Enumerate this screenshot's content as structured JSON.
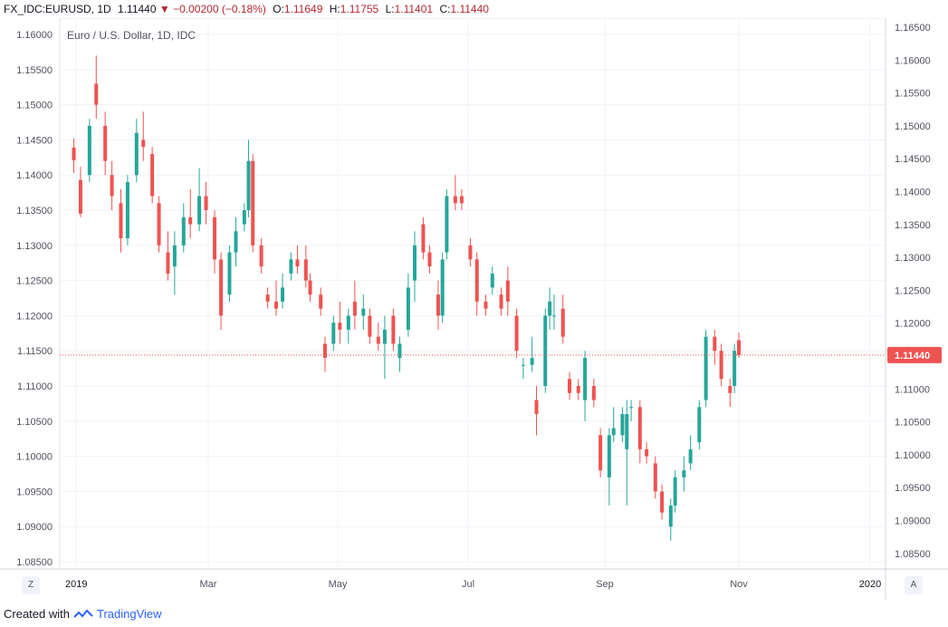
{
  "header": {
    "symbol": "FX_IDC:EURUSD",
    "interval": "1D",
    "last": "1.11440",
    "change": "−0.00200 (−0.18%)",
    "open_label": "O:",
    "open": "1.11649",
    "high_label": "H:",
    "high": "1.11755",
    "low_label": "L:",
    "low": "1.11401",
    "close_label": "C:",
    "close": "1.11440"
  },
  "chart_title": "Euro / U.S. Dollar, 1D, IDC",
  "buttons": {
    "left": "Z",
    "right": "A"
  },
  "footer": {
    "created_with": "Created with",
    "brand": "TradingView"
  },
  "chart_data": {
    "type": "candlestick",
    "title": "Euro / U.S. Dollar, 1D, IDC",
    "x_axis": {
      "labels": [
        "2019",
        "Mar",
        "May",
        "Jul",
        "Sep",
        "Nov",
        "2020"
      ],
      "range": [
        "2018-12-28",
        "2020-01-31"
      ]
    },
    "y_axis": {
      "left_ticks": [
        "1.16000",
        "1.15500",
        "1.15000",
        "1.14500",
        "1.14000",
        "1.13500",
        "1.13000",
        "1.12500",
        "1.12000",
        "1.11500",
        "1.11000",
        "1.10500",
        "1.10000",
        "1.09500",
        "1.09000",
        "1.08500"
      ],
      "right_ticks": [
        "1.16500",
        "1.16000",
        "1.15500",
        "1.15000",
        "1.14500",
        "1.14000",
        "1.13500",
        "1.13000",
        "1.12500",
        "1.12000",
        "1.11500",
        "1.11000",
        "1.10500",
        "1.10000",
        "1.09500",
        "1.09000",
        "1.08500"
      ]
    },
    "last_price_label": "1.11440",
    "last_price": 1.1144,
    "grid": true,
    "colors": {
      "up": "#26a69a",
      "down": "#ef5350",
      "price_line": "#ef5350"
    },
    "series": [
      {
        "date": "2018-12-31",
        "o": 1.1439,
        "h": 1.1452,
        "l": 1.1403,
        "c": 1.1421
      },
      {
        "date": "2019-01-03",
        "o": 1.1393,
        "h": 1.1412,
        "l": 1.134,
        "c": 1.1345
      },
      {
        "date": "2019-01-07",
        "o": 1.14,
        "h": 1.148,
        "l": 1.139,
        "c": 1.147
      },
      {
        "date": "2019-01-10",
        "o": 1.153,
        "h": 1.157,
        "l": 1.148,
        "c": 1.15
      },
      {
        "date": "2019-01-14",
        "o": 1.147,
        "h": 1.149,
        "l": 1.14,
        "c": 1.142
      },
      {
        "date": "2019-01-17",
        "o": 1.14,
        "h": 1.142,
        "l": 1.135,
        "c": 1.137
      },
      {
        "date": "2019-01-21",
        "o": 1.136,
        "h": 1.138,
        "l": 1.129,
        "c": 1.131
      },
      {
        "date": "2019-01-24",
        "o": 1.131,
        "h": 1.14,
        "l": 1.13,
        "c": 1.139
      },
      {
        "date": "2019-01-28",
        "o": 1.14,
        "h": 1.148,
        "l": 1.139,
        "c": 1.146
      },
      {
        "date": "2019-01-31",
        "o": 1.145,
        "h": 1.149,
        "l": 1.142,
        "c": 1.144
      },
      {
        "date": "2019-02-04",
        "o": 1.143,
        "h": 1.144,
        "l": 1.136,
        "c": 1.137
      },
      {
        "date": "2019-02-07",
        "o": 1.136,
        "h": 1.137,
        "l": 1.129,
        "c": 1.13
      },
      {
        "date": "2019-02-11",
        "o": 1.129,
        "h": 1.132,
        "l": 1.125,
        "c": 1.126
      },
      {
        "date": "2019-02-14",
        "o": 1.127,
        "h": 1.132,
        "l": 1.123,
        "c": 1.13
      },
      {
        "date": "2019-02-18",
        "o": 1.13,
        "h": 1.136,
        "l": 1.129,
        "c": 1.134
      },
      {
        "date": "2019-02-21",
        "o": 1.134,
        "h": 1.138,
        "l": 1.131,
        "c": 1.133
      },
      {
        "date": "2019-02-25",
        "o": 1.133,
        "h": 1.141,
        "l": 1.132,
        "c": 1.137
      },
      {
        "date": "2019-02-28",
        "o": 1.137,
        "h": 1.139,
        "l": 1.133,
        "c": 1.135
      },
      {
        "date": "2019-03-04",
        "o": 1.134,
        "h": 1.135,
        "l": 1.126,
        "c": 1.128
      },
      {
        "date": "2019-03-07",
        "o": 1.128,
        "h": 1.129,
        "l": 1.118,
        "c": 1.12
      },
      {
        "date": "2019-03-11",
        "o": 1.123,
        "h": 1.13,
        "l": 1.122,
        "c": 1.129
      },
      {
        "date": "2019-03-14",
        "o": 1.129,
        "h": 1.134,
        "l": 1.127,
        "c": 1.132
      },
      {
        "date": "2019-03-18",
        "o": 1.133,
        "h": 1.136,
        "l": 1.132,
        "c": 1.135
      },
      {
        "date": "2019-03-20",
        "o": 1.135,
        "h": 1.145,
        "l": 1.134,
        "c": 1.142
      },
      {
        "date": "2019-03-22",
        "o": 1.142,
        "h": 1.143,
        "l": 1.129,
        "c": 1.13
      },
      {
        "date": "2019-03-26",
        "o": 1.13,
        "h": 1.131,
        "l": 1.126,
        "c": 1.127
      },
      {
        "date": "2019-03-29",
        "o": 1.123,
        "h": 1.124,
        "l": 1.121,
        "c": 1.122
      },
      {
        "date": "2019-04-02",
        "o": 1.122,
        "h": 1.125,
        "l": 1.12,
        "c": 1.121
      },
      {
        "date": "2019-04-05",
        "o": 1.122,
        "h": 1.126,
        "l": 1.121,
        "c": 1.124
      },
      {
        "date": "2019-04-09",
        "o": 1.126,
        "h": 1.129,
        "l": 1.125,
        "c": 1.128
      },
      {
        "date": "2019-04-12",
        "o": 1.128,
        "h": 1.13,
        "l": 1.126,
        "c": 1.127
      },
      {
        "date": "2019-04-16",
        "o": 1.128,
        "h": 1.13,
        "l": 1.124,
        "c": 1.125
      },
      {
        "date": "2019-04-18",
        "o": 1.125,
        "h": 1.126,
        "l": 1.122,
        "c": 1.123
      },
      {
        "date": "2019-04-23",
        "o": 1.123,
        "h": 1.124,
        "l": 1.12,
        "c": 1.121
      },
      {
        "date": "2019-04-25",
        "o": 1.116,
        "h": 1.117,
        "l": 1.112,
        "c": 1.114
      },
      {
        "date": "2019-04-29",
        "o": 1.116,
        "h": 1.12,
        "l": 1.115,
        "c": 1.119
      },
      {
        "date": "2019-05-02",
        "o": 1.119,
        "h": 1.122,
        "l": 1.116,
        "c": 1.118
      },
      {
        "date": "2019-05-06",
        "o": 1.118,
        "h": 1.121,
        "l": 1.116,
        "c": 1.12
      },
      {
        "date": "2019-05-09",
        "o": 1.122,
        "h": 1.125,
        "l": 1.118,
        "c": 1.12
      },
      {
        "date": "2019-05-13",
        "o": 1.12,
        "h": 1.123,
        "l": 1.118,
        "c": 1.121
      },
      {
        "date": "2019-05-16",
        "o": 1.12,
        "h": 1.121,
        "l": 1.116,
        "c": 1.117
      },
      {
        "date": "2019-05-20",
        "o": 1.117,
        "h": 1.119,
        "l": 1.115,
        "c": 1.116
      },
      {
        "date": "2019-05-23",
        "o": 1.116,
        "h": 1.12,
        "l": 1.111,
        "c": 1.118
      },
      {
        "date": "2019-05-27",
        "o": 1.12,
        "h": 1.121,
        "l": 1.115,
        "c": 1.116
      },
      {
        "date": "2019-05-30",
        "o": 1.114,
        "h": 1.117,
        "l": 1.112,
        "c": 1.116
      },
      {
        "date": "2019-06-03",
        "o": 1.118,
        "h": 1.126,
        "l": 1.117,
        "c": 1.124
      },
      {
        "date": "2019-06-06",
        "o": 1.125,
        "h": 1.132,
        "l": 1.122,
        "c": 1.13
      },
      {
        "date": "2019-06-10",
        "o": 1.133,
        "h": 1.134,
        "l": 1.128,
        "c": 1.129
      },
      {
        "date": "2019-06-13",
        "o": 1.129,
        "h": 1.13,
        "l": 1.126,
        "c": 1.127
      },
      {
        "date": "2019-06-17",
        "o": 1.123,
        "h": 1.125,
        "l": 1.118,
        "c": 1.12
      },
      {
        "date": "2019-06-19",
        "o": 1.12,
        "h": 1.129,
        "l": 1.119,
        "c": 1.128
      },
      {
        "date": "2019-06-21",
        "o": 1.129,
        "h": 1.138,
        "l": 1.128,
        "c": 1.137
      },
      {
        "date": "2019-06-25",
        "o": 1.137,
        "h": 1.14,
        "l": 1.135,
        "c": 1.136
      },
      {
        "date": "2019-06-28",
        "o": 1.137,
        "h": 1.138,
        "l": 1.135,
        "c": 1.136
      },
      {
        "date": "2019-07-02",
        "o": 1.13,
        "h": 1.131,
        "l": 1.127,
        "c": 1.128
      },
      {
        "date": "2019-07-05",
        "o": 1.128,
        "h": 1.129,
        "l": 1.12,
        "c": 1.122
      },
      {
        "date": "2019-07-09",
        "o": 1.122,
        "h": 1.123,
        "l": 1.12,
        "c": 1.121
      },
      {
        "date": "2019-07-12",
        "o": 1.124,
        "h": 1.127,
        "l": 1.123,
        "c": 1.126
      },
      {
        "date": "2019-07-16",
        "o": 1.123,
        "h": 1.124,
        "l": 1.12,
        "c": 1.121
      },
      {
        "date": "2019-07-19",
        "o": 1.125,
        "h": 1.127,
        "l": 1.12,
        "c": 1.122
      },
      {
        "date": "2019-07-23",
        "o": 1.12,
        "h": 1.121,
        "l": 1.114,
        "c": 1.115
      },
      {
        "date": "2019-07-26",
        "o": 1.113,
        "h": 1.114,
        "l": 1.111,
        "c": 1.113
      },
      {
        "date": "2019-07-30",
        "o": 1.113,
        "h": 1.117,
        "l": 1.112,
        "c": 1.114
      },
      {
        "date": "2019-08-01",
        "o": 1.108,
        "h": 1.11,
        "l": 1.103,
        "c": 1.106
      },
      {
        "date": "2019-08-05",
        "o": 1.11,
        "h": 1.121,
        "l": 1.109,
        "c": 1.12
      },
      {
        "date": "2019-08-07",
        "o": 1.12,
        "h": 1.124,
        "l": 1.118,
        "c": 1.122
      },
      {
        "date": "2019-08-09",
        "o": 1.12,
        "h": 1.123,
        "l": 1.118,
        "c": 1.12
      },
      {
        "date": "2019-08-13",
        "o": 1.121,
        "h": 1.123,
        "l": 1.116,
        "c": 1.117
      },
      {
        "date": "2019-08-16",
        "o": 1.111,
        "h": 1.112,
        "l": 1.108,
        "c": 1.109
      },
      {
        "date": "2019-08-20",
        "o": 1.11,
        "h": 1.111,
        "l": 1.108,
        "c": 1.109
      },
      {
        "date": "2019-08-23",
        "o": 1.108,
        "h": 1.115,
        "l": 1.105,
        "c": 1.114
      },
      {
        "date": "2019-08-27",
        "o": 1.11,
        "h": 1.111,
        "l": 1.107,
        "c": 1.108
      },
      {
        "date": "2019-08-30",
        "o": 1.103,
        "h": 1.104,
        "l": 1.097,
        "c": 1.098
      },
      {
        "date": "2019-09-03",
        "o": 1.097,
        "h": 1.104,
        "l": 1.093,
        "c": 1.103
      },
      {
        "date": "2019-09-05",
        "o": 1.103,
        "h": 1.107,
        "l": 1.102,
        "c": 1.104
      },
      {
        "date": "2019-09-09",
        "o": 1.103,
        "h": 1.107,
        "l": 1.102,
        "c": 1.106
      },
      {
        "date": "2019-09-11",
        "o": 1.101,
        "h": 1.108,
        "l": 1.093,
        "c": 1.106
      },
      {
        "date": "2019-09-13",
        "o": 1.107,
        "h": 1.108,
        "l": 1.105,
        "c": 1.107
      },
      {
        "date": "2019-09-17",
        "o": 1.107,
        "h": 1.108,
        "l": 1.099,
        "c": 1.101
      },
      {
        "date": "2019-09-20",
        "o": 1.101,
        "h": 1.102,
        "l": 1.099,
        "c": 1.1
      },
      {
        "date": "2019-09-24",
        "o": 1.099,
        "h": 1.1,
        "l": 1.094,
        "c": 1.095
      },
      {
        "date": "2019-09-27",
        "o": 1.095,
        "h": 1.096,
        "l": 1.091,
        "c": 1.092
      },
      {
        "date": "2019-10-01",
        "o": 1.09,
        "h": 1.094,
        "l": 1.088,
        "c": 1.093
      },
      {
        "date": "2019-10-03",
        "o": 1.093,
        "h": 1.098,
        "l": 1.092,
        "c": 1.097
      },
      {
        "date": "2019-10-07",
        "o": 1.097,
        "h": 1.1,
        "l": 1.095,
        "c": 1.098
      },
      {
        "date": "2019-10-10",
        "o": 1.099,
        "h": 1.103,
        "l": 1.098,
        "c": 1.101
      },
      {
        "date": "2019-10-14",
        "o": 1.102,
        "h": 1.108,
        "l": 1.101,
        "c": 1.107
      },
      {
        "date": "2019-10-17",
        "o": 1.108,
        "h": 1.118,
        "l": 1.107,
        "c": 1.117
      },
      {
        "date": "2019-10-21",
        "o": 1.117,
        "h": 1.118,
        "l": 1.113,
        "c": 1.115
      },
      {
        "date": "2019-10-24",
        "o": 1.115,
        "h": 1.116,
        "l": 1.11,
        "c": 1.111
      },
      {
        "date": "2019-10-28",
        "o": 1.11,
        "h": 1.111,
        "l": 1.107,
        "c": 1.109
      },
      {
        "date": "2019-10-30",
        "o": 1.11,
        "h": 1.116,
        "l": 1.109,
        "c": 1.115
      },
      {
        "date": "2019-11-01",
        "o": 1.1165,
        "h": 1.1176,
        "l": 1.114,
        "c": 1.1144
      }
    ]
  }
}
